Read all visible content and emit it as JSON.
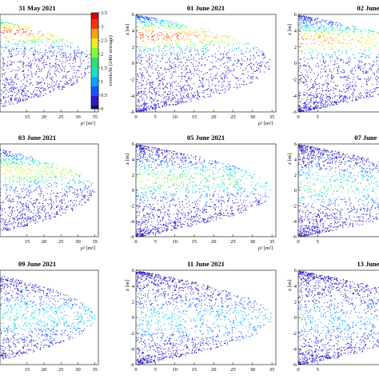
{
  "colors": {
    "palette": [
      "#0a0a6e",
      "#2a1ac8",
      "#1a52ff",
      "#00a8ff",
      "#14e0c8",
      "#30e070",
      "#7fff30",
      "#e8f020",
      "#ffa010",
      "#ff3010",
      "#e00000"
    ],
    "frame": "#000000",
    "background": "#ffffff"
  },
  "chart_data": [
    {
      "type": "heatmap",
      "title": "31 May 2021",
      "xlabel": "ρ² [m²]",
      "ylabel": "",
      "xlim": [
        0,
        36
      ],
      "ylim": [
        -6,
        6
      ],
      "xticks": [
        "15",
        "20",
        "25",
        "30",
        "35"
      ],
      "yticks": [],
      "band_center_z": 3.8,
      "band_intensity": 0.98,
      "band_width_z": 1.4
    },
    {
      "type": "heatmap",
      "title": "01 June 2021",
      "xlabel": "ρ² [m²]",
      "ylabel": "z [m]",
      "xlim": [
        0,
        36
      ],
      "ylim": [
        -6,
        6
      ],
      "xticks": [
        "0",
        "5",
        "10",
        "15",
        "20",
        "25",
        "30",
        "35"
      ],
      "yticks": [
        "-6",
        "-4",
        "-2",
        "0",
        "2",
        "4",
        "6"
      ],
      "band_center_z": 3.4,
      "band_intensity": 0.92,
      "band_width_z": 1.5
    },
    {
      "type": "heatmap",
      "title": "02 June",
      "xlabel": "",
      "ylabel": "z [m]",
      "xlim": [
        0,
        36
      ],
      "ylim": [
        -6,
        6
      ],
      "xticks": [
        "0",
        "5"
      ],
      "yticks": [
        "-6",
        "-4",
        "-2",
        "0",
        "2",
        "4",
        "6"
      ],
      "band_center_z": 2.8,
      "band_intensity": 0.85,
      "band_width_z": 1.5
    },
    {
      "type": "heatmap",
      "title": "03 June 2021",
      "xlabel": "ρ² [m²]",
      "ylabel": "",
      "xlim": [
        0,
        36
      ],
      "ylim": [
        -6,
        6
      ],
      "xticks": [
        "15",
        "20",
        "25",
        "30",
        "35"
      ],
      "yticks": [],
      "band_center_z": 2.5,
      "band_intensity": 0.72,
      "band_width_z": 1.6
    },
    {
      "type": "heatmap",
      "title": "05 June 2021",
      "xlabel": "ρ² [m²]",
      "ylabel": "z [m]",
      "xlim": [
        0,
        36
      ],
      "ylim": [
        -6,
        6
      ],
      "xticks": [
        "0",
        "5",
        "10",
        "15",
        "20",
        "25",
        "30",
        "35"
      ],
      "yticks": [
        "-6",
        "-4",
        "-2",
        "0",
        "2",
        "4",
        "6"
      ],
      "band_center_z": 1.4,
      "band_intensity": 0.55,
      "band_width_z": 1.7
    },
    {
      "type": "heatmap",
      "title": "07 June 2",
      "xlabel": "",
      "ylabel": "z [m]",
      "xlim": [
        0,
        36
      ],
      "ylim": [
        -6,
        6
      ],
      "xticks": [
        "0",
        "5"
      ],
      "yticks": [
        "-6",
        "-4",
        "-2",
        "0",
        "2",
        "4",
        "6"
      ],
      "band_center_z": 0.6,
      "band_intensity": 0.45,
      "band_width_z": 1.8
    },
    {
      "type": "heatmap",
      "title": "09 June 2021",
      "xlabel": "",
      "ylabel": "",
      "xlim": [
        0,
        36
      ],
      "ylim": [
        -6,
        6
      ],
      "xticks": [
        "15",
        "20",
        "25",
        "30",
        "35"
      ],
      "yticks": [],
      "band_center_z": 0.2,
      "band_intensity": 0.38,
      "band_width_z": 1.9
    },
    {
      "type": "heatmap",
      "title": "11 June 2021",
      "xlabel": "",
      "ylabel": "z [m]",
      "xlim": [
        0,
        36
      ],
      "ylim": [
        -6,
        6
      ],
      "xticks": [
        "0",
        "5",
        "10",
        "15",
        "20",
        "25",
        "30",
        "35"
      ],
      "yticks": [
        "-6",
        "-4",
        "-2",
        "0",
        "2",
        "4",
        "6"
      ],
      "band_center_z": -0.2,
      "band_intensity": 0.28,
      "band_width_z": 2.0
    },
    {
      "type": "heatmap",
      "title": "13 June",
      "xlabel": "",
      "ylabel": "z [m]",
      "xlim": [
        0,
        36
      ],
      "ylim": [
        -6,
        6
      ],
      "xticks": [
        "0",
        "5"
      ],
      "yticks": [
        "-6",
        "-4",
        "-2",
        "0",
        "2",
        "4",
        "6"
      ],
      "band_center_z": -0.4,
      "band_intensity": 0.2,
      "band_width_z": 2.1
    }
  ],
  "colorbar": {
    "label": "events/hr (24hr average)",
    "range": [
      0,
      3.5
    ],
    "ticks": [
      "0",
      "0.5",
      "1",
      "1.5",
      "2",
      "2.5",
      "3",
      "3.5"
    ]
  }
}
